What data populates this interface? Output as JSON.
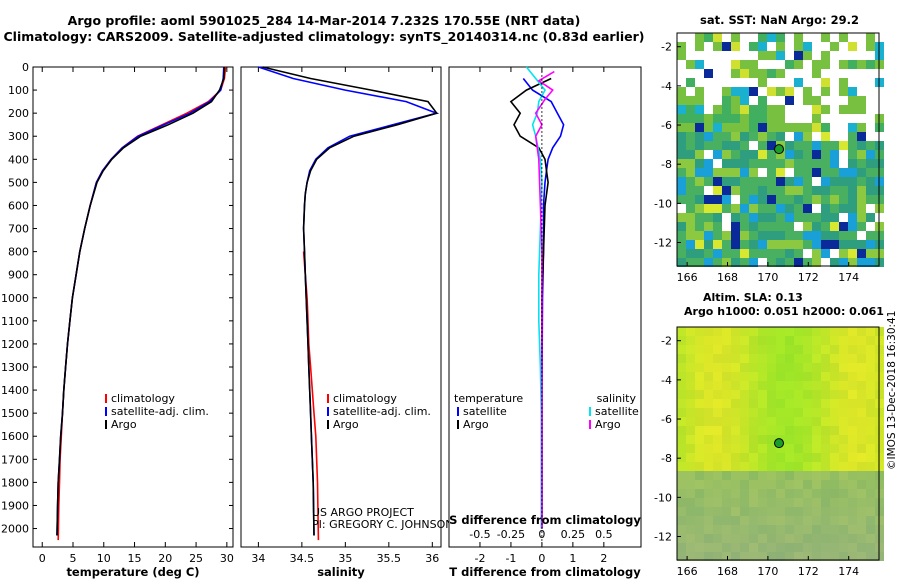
{
  "header": {
    "title_line1": "Argo profile: aoml 5901025_284 14-Mar-2014 7.232S 170.55E (NRT data)",
    "title_line2": "Climatology: CARS2009. Satellite-adjusted climatology: synTS_20140314.nc (0.83d earlier)"
  },
  "footer": {
    "project": "US ARGO PROJECT",
    "pi": "PI: GREGORY C. JOHNSON",
    "timestamp": "©IMOS 13-Dec-2018 16:30:41"
  },
  "colors": {
    "climatology": "#ff0000",
    "satellite": "#0000ff",
    "argo": "#000000",
    "s_satellite": "#00e5ee",
    "s_argo": "#ff00ff",
    "marker": "#1a9e2a"
  },
  "chart_data": [
    {
      "type": "line",
      "title": "temperature profile",
      "xlabel": "temperature (deg C)",
      "ylabel": "",
      "xlim": [
        -1.5,
        31
      ],
      "ylim": [
        2080,
        0
      ],
      "xticks": [
        0,
        5,
        10,
        15,
        20,
        25,
        30
      ],
      "xtick_labels": [
        "0",
        "5",
        "10",
        "15",
        "20",
        "25",
        "30"
      ],
      "yticks": [
        0,
        100,
        200,
        300,
        400,
        500,
        600,
        700,
        800,
        900,
        1000,
        1100,
        1200,
        1300,
        1400,
        1500,
        1600,
        1700,
        1800,
        1900,
        2000
      ],
      "ytick_labels": [
        "0",
        "100",
        "200",
        "300",
        "400",
        "500",
        "600",
        "700",
        "800",
        "900",
        "1000",
        "1100",
        "1200",
        "1300",
        "1400",
        "1500",
        "1600",
        "1700",
        "1800",
        "1900",
        "2000"
      ],
      "legend": [
        "climatology",
        "satellite-adj. clim.",
        "Argo"
      ],
      "series": [
        {
          "name": "climatology",
          "color": "#ff0000",
          "x": [
            29.8,
            29.6,
            29.0,
            27.0,
            23.5,
            19.5,
            15.5,
            13.0,
            11.2,
            9.8,
            8.8,
            7.8,
            6.9,
            6.1,
            5.5,
            4.9,
            4.5,
            4.1,
            3.8,
            3.5,
            3.3,
            3.1,
            2.9,
            2.8,
            2.7,
            2.6
          ],
          "y": [
            0,
            50,
            100,
            150,
            200,
            250,
            300,
            350,
            400,
            450,
            500,
            600,
            700,
            800,
            900,
            1000,
            1100,
            1200,
            1300,
            1400,
            1500,
            1600,
            1700,
            1800,
            1900,
            2050
          ]
        },
        {
          "name": "satellite-adj. clim.",
          "color": "#0000ff",
          "x": [
            29.5,
            29.4,
            29.0,
            27.2,
            24.0,
            19.8,
            15.6,
            13.0,
            11.2,
            9.8,
            8.8,
            7.8,
            6.9,
            6.1,
            5.5,
            4.9,
            4.5,
            4.1,
            3.8,
            3.5,
            3.3,
            3.0,
            2.8,
            2.6,
            2.5,
            2.4
          ],
          "y": [
            0,
            50,
            100,
            150,
            200,
            250,
            300,
            350,
            400,
            450,
            500,
            600,
            700,
            800,
            900,
            1000,
            1100,
            1200,
            1300,
            1400,
            1500,
            1600,
            1700,
            1800,
            1900,
            2030
          ]
        },
        {
          "name": "Argo",
          "color": "#000000",
          "x": [
            29.6,
            29.5,
            28.8,
            27.5,
            24.5,
            20.5,
            16.0,
            13.2,
            11.3,
            9.9,
            8.9,
            7.8,
            6.9,
            6.1,
            5.5,
            4.9,
            4.5,
            4.1,
            3.8,
            3.5,
            3.3,
            3.0,
            2.8,
            2.6,
            2.5,
            2.4
          ],
          "y": [
            0,
            50,
            100,
            150,
            200,
            250,
            300,
            350,
            400,
            450,
            500,
            600,
            700,
            800,
            900,
            1000,
            1100,
            1200,
            1300,
            1400,
            1500,
            1600,
            1700,
            1800,
            1900,
            2030
          ]
        }
      ]
    },
    {
      "type": "line",
      "title": "salinity profile",
      "xlabel": "salinity",
      "ylabel": "",
      "xlim": [
        33.8,
        36.1
      ],
      "ylim": [
        2080,
        0
      ],
      "xticks": [
        34,
        34.5,
        35,
        35.5,
        36
      ],
      "xtick_labels": [
        "34",
        "34.5",
        "35",
        "35.5",
        "36"
      ],
      "legend": [
        "climatology",
        "satellite-adj. clim.",
        "Argo"
      ],
      "series": [
        {
          "name": "climatology",
          "color": "#ff0000",
          "x": [
            34.52,
            34.54,
            34.56,
            34.57,
            34.58,
            34.6,
            34.62,
            34.64,
            34.66,
            34.68,
            34.69
          ],
          "y": [
            800,
            900,
            1000,
            1100,
            1200,
            1300,
            1400,
            1500,
            1600,
            1800,
            2050
          ]
        },
        {
          "name": "satellite-adj. clim.",
          "color": "#0000ff",
          "x": [
            34.0,
            34.4,
            35.0,
            35.7,
            36.05,
            35.55,
            35.05,
            34.8,
            34.66,
            34.59,
            34.56,
            34.54,
            34.53,
            34.52,
            34.53,
            34.54,
            34.55,
            34.56,
            34.57,
            34.58,
            34.59,
            34.6,
            34.61,
            34.62,
            34.63,
            34.64
          ],
          "y": [
            0,
            50,
            100,
            150,
            200,
            250,
            300,
            350,
            400,
            450,
            500,
            550,
            600,
            700,
            800,
            900,
            1000,
            1100,
            1200,
            1300,
            1400,
            1500,
            1600,
            1700,
            1800,
            2030
          ]
        },
        {
          "name": "Argo",
          "color": "#000000",
          "x": [
            34.05,
            34.6,
            35.3,
            35.95,
            36.05,
            35.6,
            35.1,
            34.82,
            34.67,
            34.6,
            34.56,
            34.54,
            34.53,
            34.52,
            34.53,
            34.54,
            34.55,
            34.56,
            34.57,
            34.58,
            34.59,
            34.6,
            34.61,
            34.62,
            34.63,
            34.64
          ],
          "y": [
            0,
            50,
            100,
            150,
            200,
            250,
            300,
            350,
            400,
            450,
            500,
            550,
            600,
            700,
            800,
            900,
            1000,
            1100,
            1200,
            1300,
            1400,
            1500,
            1600,
            1700,
            1800,
            2030
          ]
        }
      ]
    },
    {
      "type": "line",
      "title": "difference from climatology",
      "xlabel": "T difference from climatology",
      "xlabel_top": "S difference from climatology",
      "ylabel": "",
      "xlim": [
        -3,
        3.2
      ],
      "ylim": [
        2080,
        0
      ],
      "xticks": [
        -2,
        -1,
        0,
        1,
        2
      ],
      "xtick_labels": [
        "-2",
        "-1",
        "0",
        "1",
        "2"
      ],
      "sticks": [
        -0.5,
        -0.25,
        0,
        0.25,
        0.5
      ],
      "stick_labels": [
        "-0.5",
        "-0.25",
        "0",
        "0.25",
        "0.5"
      ],
      "legend_temperature_title": "temperature",
      "legend_salinity_title": "salinity",
      "legend": [
        "satellite",
        "Argo",
        "satellite",
        "Argo"
      ],
      "series": [
        {
          "name": "T satellite",
          "color": "#0000ff",
          "x": [
            -0.6,
            -0.3,
            0.3,
            0.5,
            0.7,
            0.6,
            0.35,
            0.2,
            0.15,
            0.1,
            0.05,
            0.05,
            0.02,
            0.0,
            0.0,
            0.0
          ],
          "y": [
            50,
            100,
            150,
            200,
            250,
            300,
            350,
            400,
            450,
            500,
            600,
            800,
            1000,
            1400,
            1800,
            2000
          ]
        },
        {
          "name": "T Argo",
          "color": "#000000",
          "x": [
            0.3,
            -0.5,
            -1.0,
            -0.7,
            -0.9,
            -0.7,
            -0.1,
            0.1,
            0.15,
            0.2,
            0.1,
            0.05,
            0.0,
            0.0,
            0.0,
            0.0
          ],
          "y": [
            50,
            100,
            150,
            200,
            250,
            300,
            350,
            400,
            450,
            500,
            600,
            800,
            1000,
            1400,
            1800,
            2000
          ]
        },
        {
          "name": "S satellite",
          "color": "#00e5ee",
          "x": [
            -0.5,
            -0.2,
            0.1,
            -0.1,
            -0.15,
            -0.3,
            -0.2,
            -0.05,
            0.0,
            -0.05,
            -0.1,
            -0.1,
            -0.05,
            -0.02,
            -0.02,
            -0.02
          ],
          "y": [
            0,
            50,
            100,
            150,
            200,
            250,
            300,
            400,
            500,
            700,
            900,
            1100,
            1300,
            1500,
            1800,
            2000
          ]
        },
        {
          "name": "S Argo",
          "color": "#ff00ff",
          "x": [
            0.4,
            -0.1,
            0.35,
            0.1,
            -0.2,
            0.0,
            -0.2,
            -0.1,
            -0.05,
            0.0,
            0.0,
            0.0,
            0.0
          ],
          "y": [
            20,
            60,
            100,
            140,
            200,
            250,
            300,
            400,
            600,
            800,
            1200,
            1600,
            2000
          ]
        }
      ]
    },
    {
      "type": "heatmap",
      "title": "sat. SST: NaN Argo: 29.2",
      "xticks": [
        166,
        168,
        170,
        172,
        174
      ],
      "xtick_labels": [
        "166",
        "168",
        "170",
        "172",
        "174"
      ],
      "yticks": [
        -2,
        -4,
        -6,
        -8,
        -10,
        -12
      ],
      "ytick_labels": [
        "-2",
        "-4",
        "-6",
        "-8",
        "-10",
        "-12"
      ],
      "xlim": [
        165.5,
        175.5
      ],
      "ylim": [
        -13.2,
        -1.3
      ],
      "argo_lon": 170.55,
      "argo_lat": -7.232
    },
    {
      "type": "heatmap",
      "title_line1": "Altim. SLA: 0.13",
      "title_line2": "Argo h1000: 0.051 h2000: 0.061",
      "xticks": [
        166,
        168,
        170,
        172,
        174
      ],
      "xtick_labels": [
        "166",
        "168",
        "170",
        "172",
        "174"
      ],
      "yticks": [
        -2,
        -4,
        -6,
        -8,
        -10,
        -12
      ],
      "ytick_labels": [
        "-2",
        "-4",
        "-6",
        "-8",
        "-10",
        "-12"
      ],
      "xlim": [
        165.5,
        175.5
      ],
      "ylim": [
        -13.2,
        -1.3
      ],
      "argo_lon": 170.55,
      "argo_lat": -7.232
    }
  ]
}
